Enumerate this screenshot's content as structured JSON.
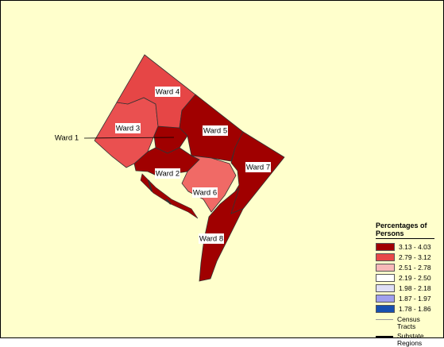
{
  "wards": [
    {
      "label": "Ward 1",
      "color": "#a00000"
    },
    {
      "label": "Ward 2",
      "color": "#a00000"
    },
    {
      "label": "Ward 3",
      "color": "#ea5050"
    },
    {
      "label": "Ward 4",
      "color": "#e64646"
    },
    {
      "label": "Ward 5",
      "color": "#a00000"
    },
    {
      "label": "Ward 6",
      "color": "#f06a66"
    },
    {
      "label": "Ward 7",
      "color": "#a00000"
    },
    {
      "label": "Ward 8",
      "color": "#a00000"
    }
  ],
  "legend": {
    "title": "Percentages of Persons",
    "items": [
      {
        "label": "3.13 - 4.03",
        "color": "#a00000"
      },
      {
        "label": "2.79 - 3.12",
        "color": "#e84848"
      },
      {
        "label": "2.51 - 2.78",
        "color": "#f8b8b8"
      },
      {
        "label": "2.19 - 2.50",
        "color": "#ffffff"
      },
      {
        "label": "1.98 - 2.18",
        "color": "#e0e0f6"
      },
      {
        "label": "1.87 - 1.97",
        "color": "#a0a0ee"
      },
      {
        "label": "1.78 - 1.86",
        "color": "#1850b0"
      }
    ],
    "lines": [
      {
        "label": "Census Tracts",
        "color": "#999999"
      },
      {
        "label": "Substate Regions",
        "color": "#000000"
      }
    ]
  }
}
